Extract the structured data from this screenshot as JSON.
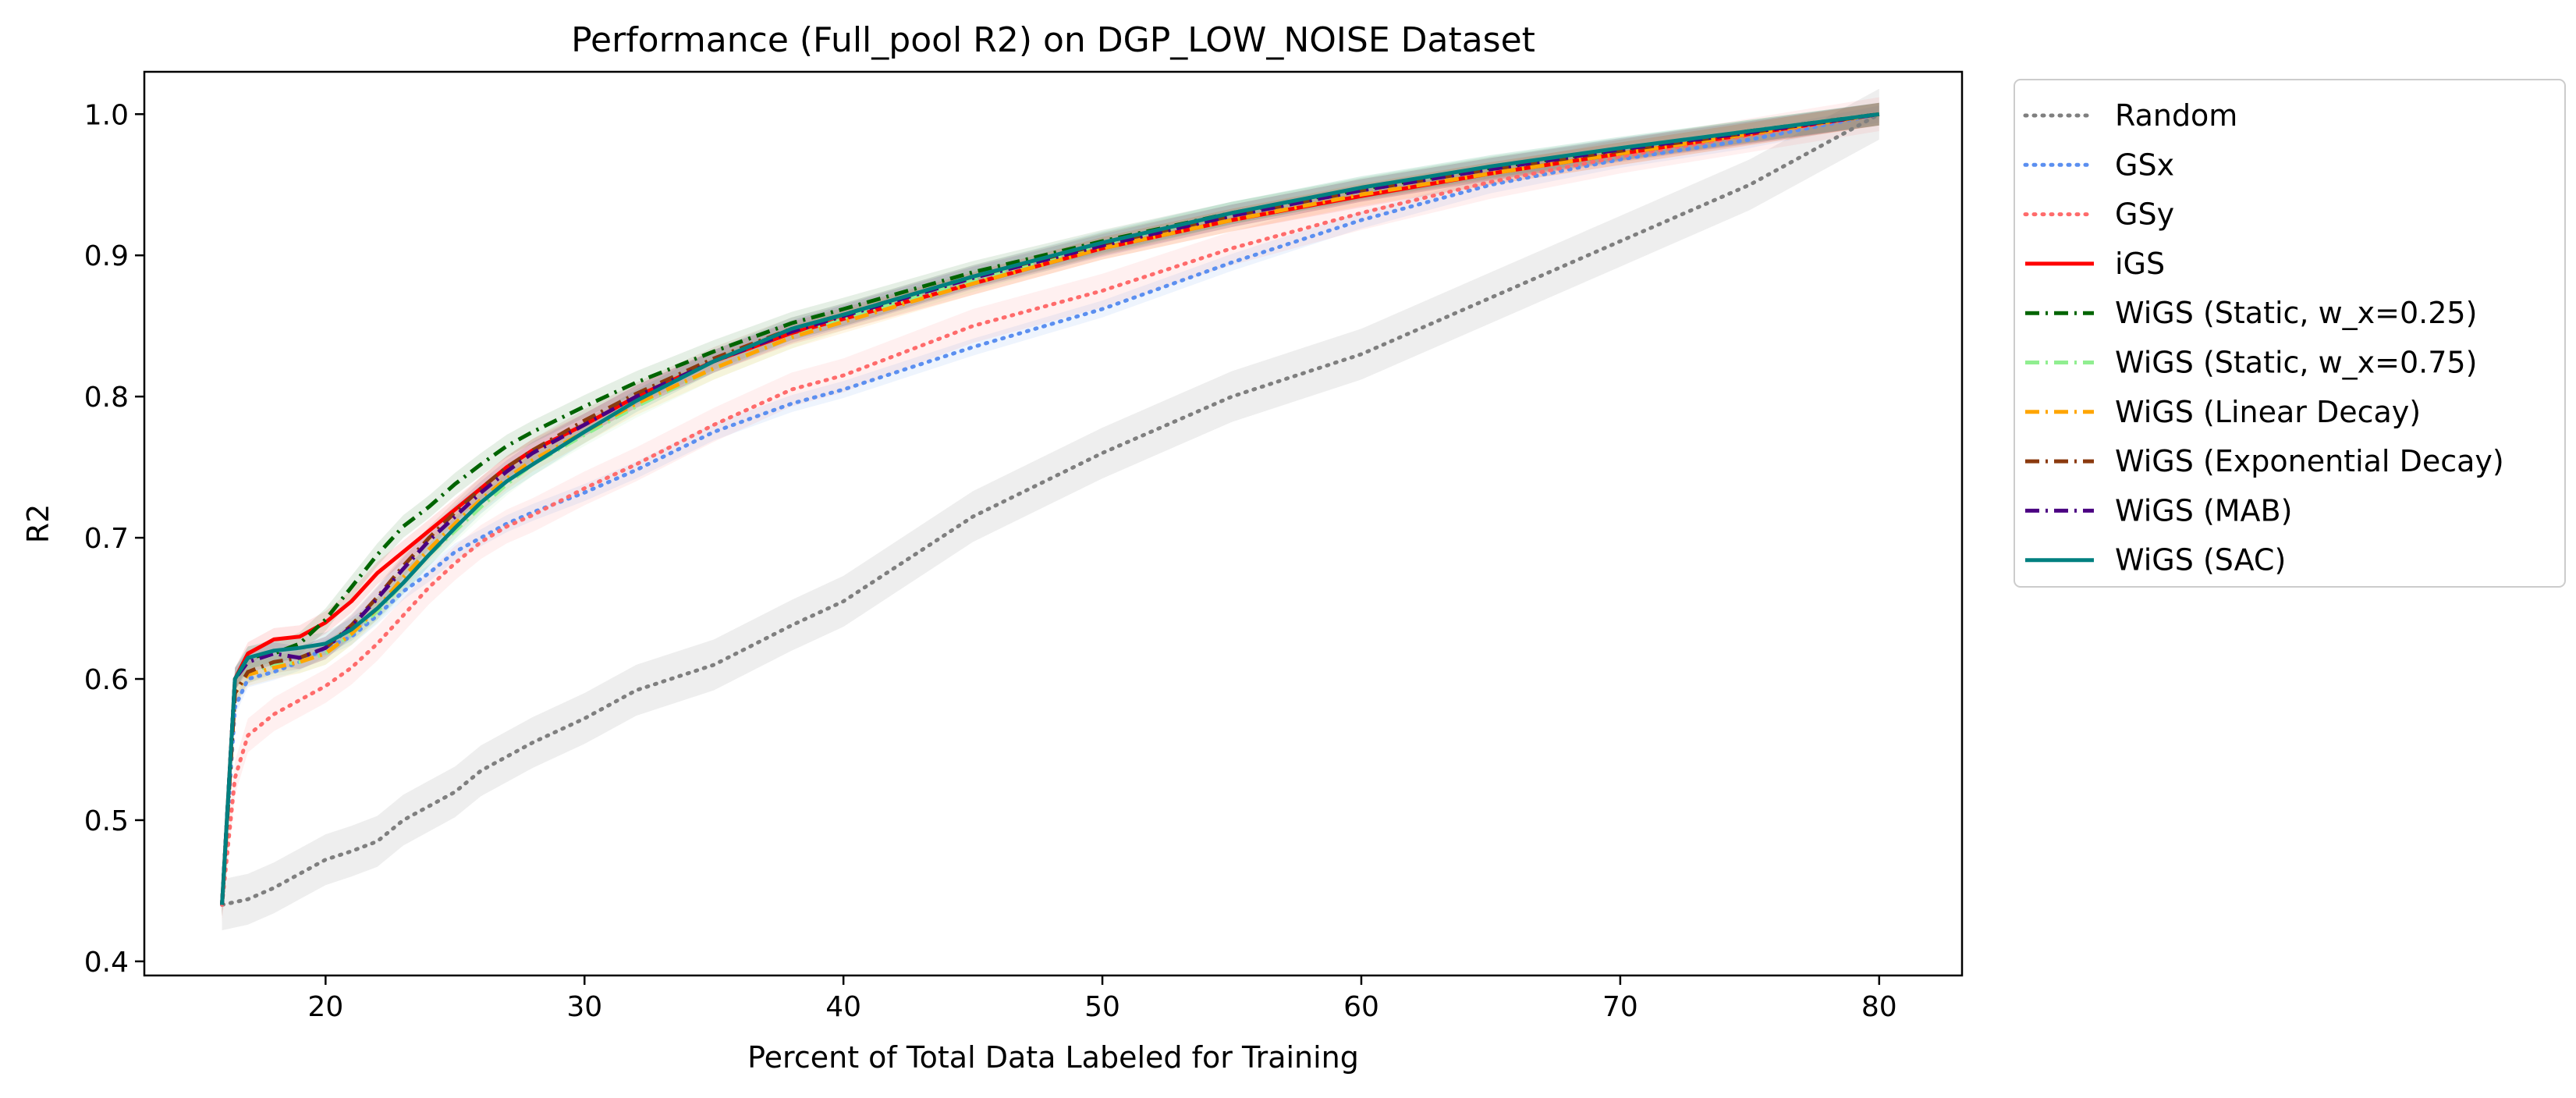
{
  "chart_data": {
    "type": "line",
    "title": "Performance (Full_pool R2) on DGP_LOW_NOISE Dataset",
    "xlabel": "Percent of Total Data Labeled for Training",
    "ylabel": "R2",
    "xlim": [
      13,
      83.2
    ],
    "ylim": [
      0.39,
      1.03
    ],
    "xticks": [
      20,
      30,
      40,
      50,
      60,
      70,
      80
    ],
    "yticks": [
      0.4,
      0.5,
      0.6,
      0.7,
      0.8,
      0.9,
      1.0
    ],
    "ytick_labels": [
      "0.4",
      "0.5",
      "0.6",
      "0.7",
      "0.8",
      "0.9",
      "1.0"
    ],
    "grid": false,
    "legend_position": "outside-right",
    "x": [
      16,
      16.5,
      17,
      18,
      19,
      20,
      21,
      22,
      23,
      24,
      25,
      26,
      27,
      28,
      30,
      32,
      35,
      38,
      40,
      45,
      50,
      55,
      60,
      65,
      70,
      75,
      80
    ],
    "series": [
      {
        "name": "Random",
        "color": "#7f7f7f",
        "dash": "dotted",
        "band": 0.018,
        "values": [
          0.44,
          0.442,
          0.444,
          0.452,
          0.462,
          0.472,
          0.478,
          0.485,
          0.5,
          0.51,
          0.52,
          0.535,
          0.545,
          0.555,
          0.572,
          0.592,
          0.61,
          0.638,
          0.655,
          0.715,
          0.76,
          0.8,
          0.83,
          0.87,
          0.91,
          0.95,
          1.0
        ]
      },
      {
        "name": "GSx",
        "color": "#5b8ff0",
        "dash": "dotted",
        "band": 0.006,
        "values": [
          0.44,
          0.58,
          0.6,
          0.605,
          0.612,
          0.622,
          0.63,
          0.645,
          0.662,
          0.675,
          0.69,
          0.7,
          0.71,
          0.718,
          0.732,
          0.748,
          0.775,
          0.795,
          0.805,
          0.835,
          0.862,
          0.895,
          0.925,
          0.95,
          0.968,
          0.982,
          1.0
        ]
      },
      {
        "name": "GSy",
        "color": "#ff6b6b",
        "dash": "dotted",
        "band": 0.012,
        "values": [
          0.44,
          0.53,
          0.56,
          0.575,
          0.585,
          0.595,
          0.608,
          0.625,
          0.645,
          0.665,
          0.682,
          0.697,
          0.708,
          0.716,
          0.735,
          0.752,
          0.78,
          0.805,
          0.815,
          0.85,
          0.875,
          0.905,
          0.93,
          0.952,
          0.97,
          0.985,
          1.0
        ]
      },
      {
        "name": "iGS",
        "color": "#ff0000",
        "dash": "solid",
        "band": 0.008,
        "values": [
          0.44,
          0.6,
          0.618,
          0.628,
          0.63,
          0.64,
          0.655,
          0.675,
          0.69,
          0.705,
          0.72,
          0.735,
          0.75,
          0.762,
          0.78,
          0.8,
          0.825,
          0.845,
          0.855,
          0.88,
          0.905,
          0.925,
          0.942,
          0.958,
          0.972,
          0.986,
          1.0
        ]
      },
      {
        "name": "WiGS (Static, w_x=0.25)",
        "color": "#006400",
        "dash": "dashdot",
        "band": 0.008,
        "values": [
          0.44,
          0.6,
          0.615,
          0.618,
          0.625,
          0.642,
          0.665,
          0.688,
          0.708,
          0.722,
          0.738,
          0.752,
          0.765,
          0.775,
          0.793,
          0.81,
          0.832,
          0.852,
          0.862,
          0.888,
          0.91,
          0.93,
          0.947,
          0.962,
          0.975,
          0.988,
          1.0
        ]
      },
      {
        "name": "WiGS (Static, w_x=0.75)",
        "color": "#90ee90",
        "dash": "dashdot",
        "band": 0.008,
        "values": [
          0.44,
          0.59,
          0.605,
          0.61,
          0.612,
          0.618,
          0.632,
          0.648,
          0.668,
          0.688,
          0.705,
          0.722,
          0.738,
          0.752,
          0.773,
          0.793,
          0.82,
          0.842,
          0.855,
          0.882,
          0.908,
          0.93,
          0.948,
          0.963,
          0.976,
          0.988,
          1.0
        ]
      },
      {
        "name": "WiGS (Linear Decay)",
        "color": "#ffa500",
        "dash": "dashdot",
        "band": 0.008,
        "values": [
          0.44,
          0.59,
          0.603,
          0.608,
          0.612,
          0.618,
          0.632,
          0.65,
          0.672,
          0.692,
          0.71,
          0.727,
          0.742,
          0.755,
          0.775,
          0.795,
          0.82,
          0.842,
          0.853,
          0.88,
          0.905,
          0.925,
          0.943,
          0.958,
          0.972,
          0.986,
          1.0
        ]
      },
      {
        "name": "WiGS (Exponential Decay)",
        "color": "#8b3a0f",
        "dash": "dashdot",
        "band": 0.008,
        "values": [
          0.44,
          0.59,
          0.605,
          0.612,
          0.615,
          0.622,
          0.638,
          0.658,
          0.68,
          0.7,
          0.718,
          0.735,
          0.75,
          0.762,
          0.783,
          0.802,
          0.827,
          0.848,
          0.858,
          0.885,
          0.908,
          0.928,
          0.946,
          0.961,
          0.974,
          0.987,
          1.0
        ]
      },
      {
        "name": "WiGS (MAB)",
        "color": "#4b0082",
        "dash": "dashdot",
        "band": 0.008,
        "values": [
          0.44,
          0.6,
          0.612,
          0.618,
          0.615,
          0.622,
          0.637,
          0.657,
          0.678,
          0.698,
          0.715,
          0.732,
          0.747,
          0.76,
          0.78,
          0.8,
          0.825,
          0.846,
          0.857,
          0.884,
          0.907,
          0.928,
          0.946,
          0.961,
          0.975,
          0.987,
          1.0
        ]
      },
      {
        "name": "WiGS (SAC)",
        "color": "#008080",
        "dash": "solid",
        "band": 0.008,
        "values": [
          0.44,
          0.6,
          0.615,
          0.62,
          0.622,
          0.625,
          0.635,
          0.65,
          0.668,
          0.688,
          0.707,
          0.725,
          0.74,
          0.752,
          0.775,
          0.797,
          0.825,
          0.848,
          0.858,
          0.885,
          0.909,
          0.93,
          0.948,
          0.963,
          0.976,
          0.988,
          1.0
        ]
      }
    ]
  }
}
